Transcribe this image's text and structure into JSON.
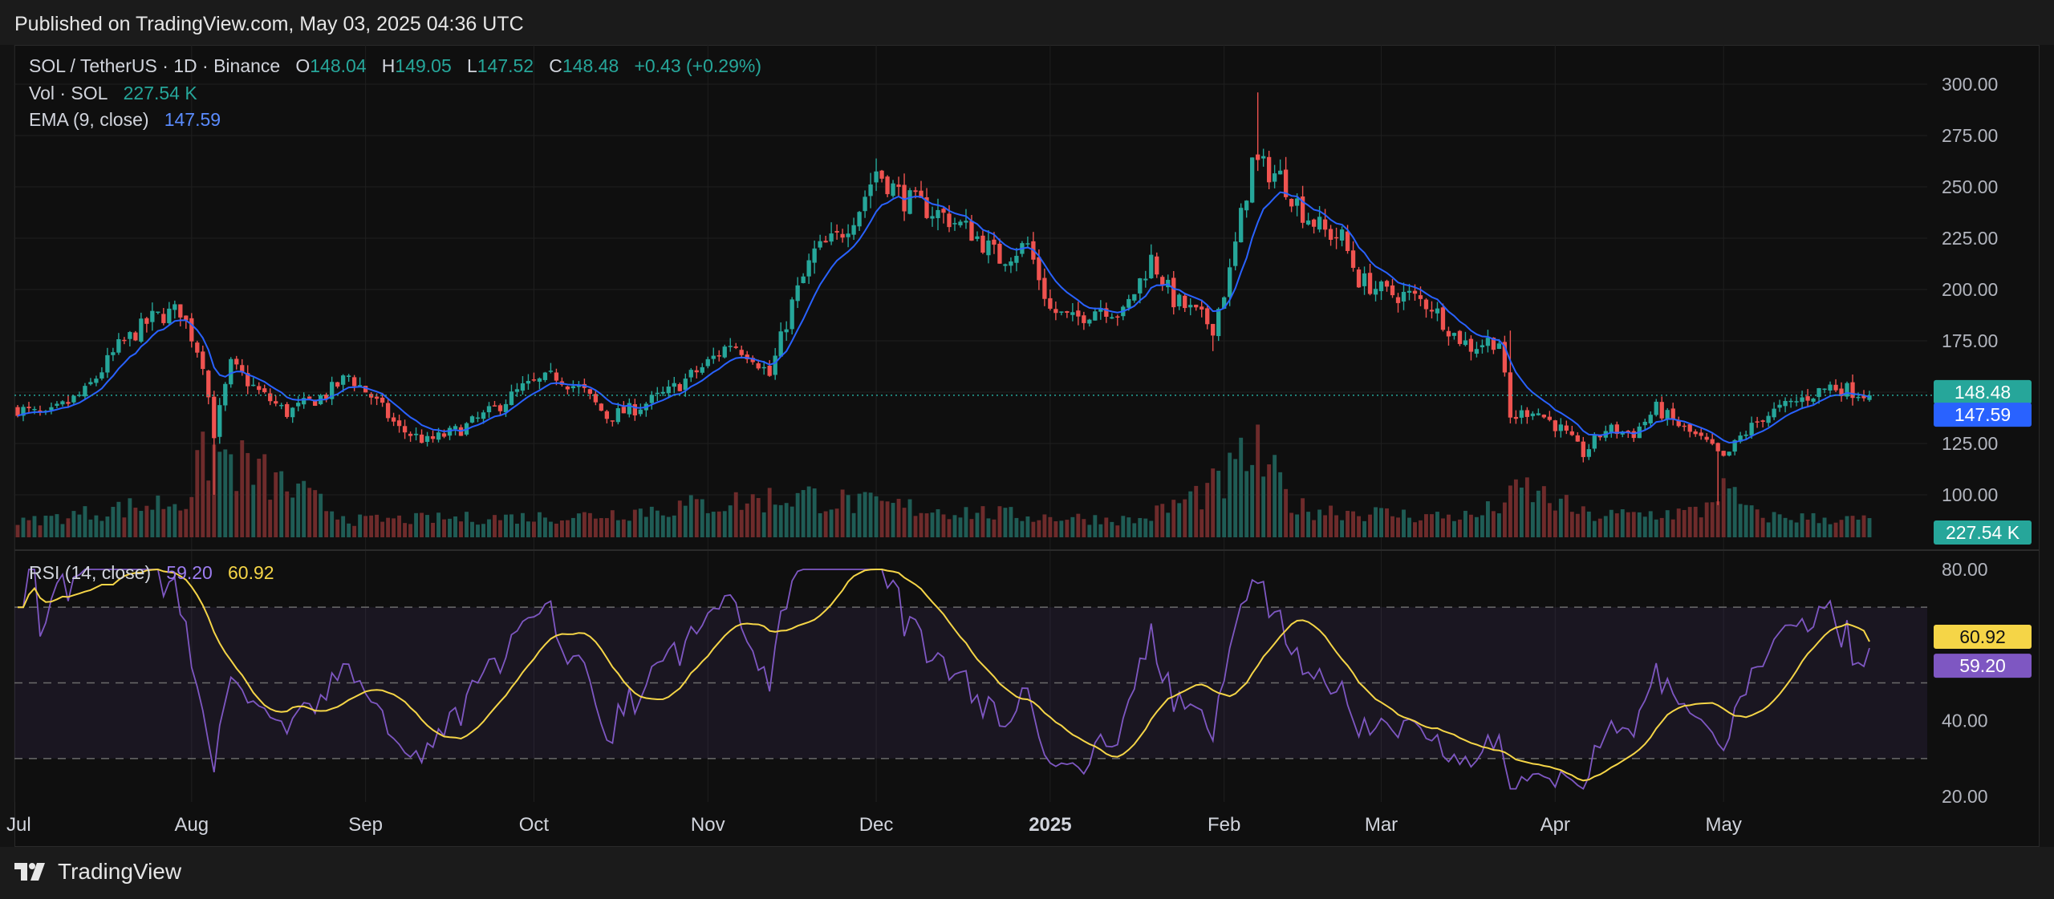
{
  "header": {
    "published": "Published on TradingView.com, May 03, 2025 04:36 UTC"
  },
  "footer": {
    "brand": "TradingView",
    "logo_icon": "tradingview-logo-icon"
  },
  "colors": {
    "up": "#26a69a",
    "down": "#ef5350",
    "ema": "#2962ff",
    "rsi": "#7e57c2",
    "rsi_ma": "#f5d547",
    "grid": "#1f1f1f"
  },
  "legend": {
    "symbol": "SOL / TetherUS · 1D · Binance",
    "o_label": "O",
    "o": "148.04",
    "h_label": "H",
    "h": "149.05",
    "l_label": "L",
    "l": "147.52",
    "c_label": "C",
    "c": "148.48",
    "change": "+0.43 (+0.29%)",
    "vol_label": "Vol · SOL",
    "vol": "227.54 K",
    "ema_label": "EMA (9, close)",
    "ema": "147.59",
    "rsi_label": "RSI (14, close)",
    "rsi": "59.20",
    "rsi_ma": "60.92"
  },
  "badges": {
    "last_price": "148.48",
    "ema": "147.59",
    "volume": "227.54 K",
    "rsi_ma": "60.92",
    "rsi": "59.20"
  },
  "chart_data": [
    {
      "type": "candlestick",
      "title": "SOL / TetherUS · 1D · Binance",
      "ylim": [
        88,
        305
      ],
      "y_ticks": [
        "300.00",
        "275.00",
        "250.00",
        "225.00",
        "200.00",
        "175.00",
        "150.00",
        "125.00",
        "100.00"
      ],
      "y_tick_values": [
        300,
        275,
        250,
        225,
        200,
        175,
        150,
        125,
        100
      ],
      "x_ticks": [
        "Jul",
        "Aug",
        "Sep",
        "Oct",
        "Nov",
        "Dec",
        "2025",
        "Feb",
        "Mar",
        "Apr",
        "May"
      ],
      "last_close": 148.48,
      "close_anchors": [
        [
          0,
          142
        ],
        [
          5,
          138
        ],
        [
          12,
          150
        ],
        [
          18,
          172
        ],
        [
          24,
          186
        ],
        [
          29,
          190
        ],
        [
          33,
          165
        ],
        [
          35,
          130
        ],
        [
          38,
          163
        ],
        [
          43,
          150
        ],
        [
          48,
          140
        ],
        [
          55,
          149
        ],
        [
          59,
          158
        ],
        [
          63,
          148
        ],
        [
          68,
          132
        ],
        [
          73,
          126
        ],
        [
          79,
          132
        ],
        [
          84,
          140
        ],
        [
          90,
          152
        ],
        [
          96,
          158
        ],
        [
          101,
          150
        ],
        [
          105,
          138
        ],
        [
          110,
          142
        ],
        [
          116,
          150
        ],
        [
          122,
          162
        ],
        [
          127,
          174
        ],
        [
          131,
          168
        ],
        [
          134,
          158
        ],
        [
          138,
          193
        ],
        [
          142,
          218
        ],
        [
          146,
          225
        ],
        [
          150,
          240
        ],
        [
          153,
          258
        ],
        [
          158,
          244
        ],
        [
          165,
          236
        ],
        [
          170,
          228
        ],
        [
          175,
          215
        ],
        [
          180,
          222
        ],
        [
          184,
          190
        ],
        [
          188,
          185
        ],
        [
          193,
          192
        ],
        [
          197,
          188
        ],
        [
          202,
          215
        ],
        [
          206,
          195
        ],
        [
          210,
          188
        ],
        [
          213,
          182
        ],
        [
          216,
          208
        ],
        [
          220,
          262
        ],
        [
          225,
          255
        ],
        [
          229,
          238
        ],
        [
          233,
          228
        ],
        [
          236,
          225
        ],
        [
          239,
          205
        ],
        [
          244,
          198
        ],
        [
          248,
          197
        ],
        [
          252,
          192
        ],
        [
          256,
          178
        ],
        [
          259,
          172
        ],
        [
          262,
          175
        ],
        [
          264,
          175
        ],
        [
          266,
          137
        ],
        [
          270,
          142
        ],
        [
          275,
          132
        ],
        [
          279,
          120
        ],
        [
          283,
          132
        ],
        [
          288,
          130
        ],
        [
          292,
          142
        ],
        [
          297,
          132
        ],
        [
          301,
          125
        ],
        [
          304,
          117
        ],
        [
          307,
          128
        ],
        [
          311,
          138
        ],
        [
          315,
          143
        ],
        [
          319,
          148
        ],
        [
          323,
          153
        ],
        [
          328,
          150
        ],
        [
          330,
          148.48
        ]
      ],
      "volume_anchors": [
        [
          0,
          12
        ],
        [
          30,
          40
        ],
        [
          34,
          100
        ],
        [
          60,
          15
        ],
        [
          100,
          20
        ],
        [
          140,
          45
        ],
        [
          150,
          35
        ],
        [
          180,
          20
        ],
        [
          200,
          15
        ],
        [
          215,
          60
        ],
        [
          220,
          100
        ],
        [
          228,
          30
        ],
        [
          250,
          20
        ],
        [
          260,
          20
        ],
        [
          266,
          40
        ],
        [
          268,
          55
        ],
        [
          280,
          20
        ],
        [
          300,
          25
        ],
        [
          303,
          55
        ],
        [
          310,
          20
        ],
        [
          330,
          15
        ]
      ],
      "volume_last": "227.54 K",
      "ema_period": 9,
      "ema_last": 147.59
    },
    {
      "type": "line",
      "title": "RSI (14, close)",
      "ylim": [
        20,
        82
      ],
      "y_ticks": [
        "80.00",
        "40.00",
        "20.00"
      ],
      "y_tick_values": [
        80,
        40,
        20
      ],
      "band": [
        30,
        70
      ],
      "midline": 50,
      "series": [
        {
          "name": "RSI",
          "last": 59.2
        },
        {
          "name": "RSI-based MA",
          "last": 60.92
        }
      ]
    }
  ]
}
